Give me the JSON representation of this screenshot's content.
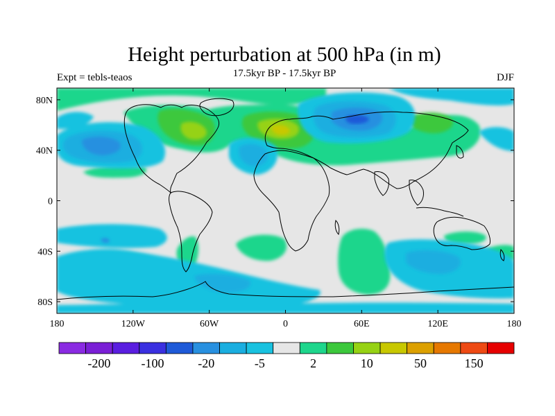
{
  "title": "Height perturbation at 500 hPa (in m)",
  "left_label": "Expt = tebls-teaos",
  "center_label": "17.5kyr BP - 17.5kyr BP",
  "right_label": "DJF",
  "lat_ticks": [
    {
      "label": "80N",
      "value": 80
    },
    {
      "label": "40N",
      "value": 40
    },
    {
      "label": "0",
      "value": 0
    },
    {
      "label": "40S",
      "value": -40
    },
    {
      "label": "80S",
      "value": -80
    }
  ],
  "lon_ticks": [
    {
      "label": "180",
      "value": -180
    },
    {
      "label": "120W",
      "value": -120
    },
    {
      "label": "60W",
      "value": -60
    },
    {
      "label": "0",
      "value": 0
    },
    {
      "label": "60E",
      "value": 60
    },
    {
      "label": "120E",
      "value": 120
    },
    {
      "label": "180",
      "value": 180
    }
  ],
  "colorbar": {
    "colors": [
      "#8a2be2",
      "#7a1fd6",
      "#5a1ee0",
      "#3a30e0",
      "#1e5ad8",
      "#2890e0",
      "#1aaee0",
      "#19c2e0",
      "#e6e6e6",
      "#1ed68c",
      "#3cc83c",
      "#96d214",
      "#c8c800",
      "#dca000",
      "#e67800",
      "#ee4a14",
      "#e60000"
    ],
    "labels": [
      {
        "text": "-200",
        "boundary": 1
      },
      {
        "text": "-100",
        "boundary": 3
      },
      {
        "text": "-20",
        "boundary": 5
      },
      {
        "text": "-5",
        "boundary": 7
      },
      {
        "text": "2",
        "boundary": 9
      },
      {
        "text": "10",
        "boundary": 11
      },
      {
        "text": "50",
        "boundary": 13
      },
      {
        "text": "150",
        "boundary": 15
      }
    ]
  },
  "colors": {
    "background": "#e6e6e6",
    "green": "#1ed68c",
    "lime": "#3cc83c",
    "yellowgreen": "#96d214",
    "yellow": "#c8c800",
    "cyan": "#19c2e0",
    "lightblue": "#1aaee0",
    "blue": "#2890e0",
    "deepblue": "#1e5ad8",
    "coast": "#000000"
  }
}
